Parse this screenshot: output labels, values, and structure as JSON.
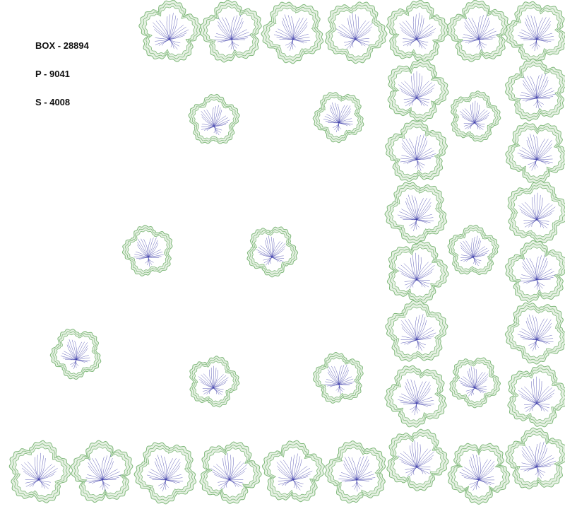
{
  "design_info": {
    "box": "BOX - 28894",
    "p": "P - 9041",
    "s": "S - 4008"
  },
  "colors": {
    "outline_green": "#7fb87a",
    "fill_green": "#e6f1e3",
    "vein_blue": "#3a3aa8",
    "background": "#ffffff"
  },
  "motif_icon": "hibiscus-flower-embroidery"
}
